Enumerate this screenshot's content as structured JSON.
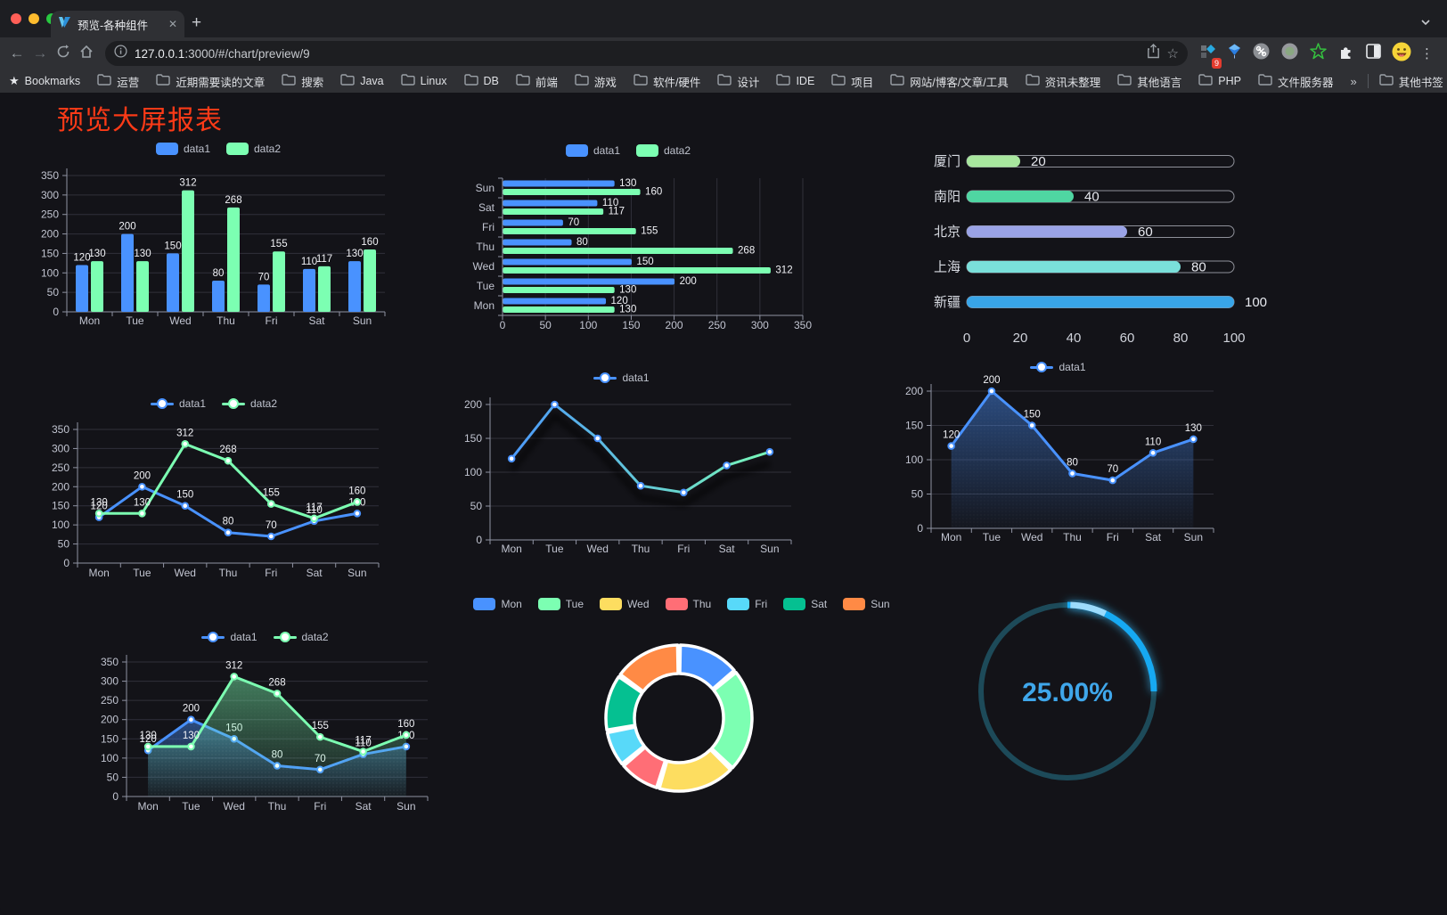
{
  "browser": {
    "tab": {
      "title": "预览-各种组件",
      "close_glyph": "✕",
      "new_tab_glyph": "+"
    },
    "toolbar": {
      "back_glyph": "←",
      "forward_glyph": "→",
      "url_host": "127.0.0.1",
      "url_rest": ":3000/#/chart/preview/9",
      "bookmark_star_glyph": "☆",
      "extension_badge": "9",
      "menu_glyph": "⋮"
    },
    "bookmarks": {
      "star_glyph": "★",
      "bookmarks_label": "Bookmarks",
      "folders": [
        "运营",
        "近期需要读的文章",
        "搜索",
        "Java",
        "Linux",
        "DB",
        "前端",
        "游戏",
        "软件/硬件",
        "设计",
        "IDE",
        "项目",
        "网站/博客/文章/工具",
        "资讯未整理",
        "其他语言",
        "PHP",
        "文件服务器"
      ],
      "overflow_glyph": "»",
      "other_bookmarks_label": "其他书签"
    }
  },
  "icons": {
    "reload-icon": "circular-arrow",
    "home-icon": "house",
    "info-icon": "circle-i",
    "share-icon": "box-up-arrow",
    "folder-icon": "folder",
    "chevron-down-icon": "v-chevron",
    "kite-icon": "blue-diamond",
    "command-icon": "grey-circle-propeller",
    "record-icon": "grey-green-circle",
    "green-star-icon": "green-star-outline",
    "puzzle-icon": "white-puzzle",
    "reading-mode-icon": "half-filled-square",
    "avatar-icon": "yellow-emoji-face"
  },
  "page": {
    "title": "预览大屏报表",
    "title_color": "#fb3a17",
    "bg": "#131318"
  },
  "chart_data": [
    {
      "id": "grouped-bar",
      "type": "bar",
      "render": "vbar",
      "title": "",
      "grid": true,
      "legend": {
        "marker": "rect",
        "position": "top",
        "items": [
          "data1",
          "data2"
        ]
      },
      "categories": [
        "Mon",
        "Tue",
        "Wed",
        "Thu",
        "Fri",
        "Sat",
        "Sun"
      ],
      "series": [
        {
          "name": "data1",
          "color": "#4992ff",
          "values": [
            120,
            200,
            150,
            80,
            70,
            110,
            130
          ]
        },
        {
          "name": "data2",
          "color": "#7cffb2",
          "values": [
            130,
            130,
            312,
            268,
            155,
            117,
            160
          ]
        }
      ],
      "y_ticks": [
        0,
        50,
        100,
        150,
        200,
        250,
        300,
        350
      ],
      "ylim": [
        0,
        350
      ],
      "labels": true
    },
    {
      "id": "grouped-hbar",
      "type": "bar",
      "render": "hbar",
      "legend": {
        "marker": "rect",
        "position": "top",
        "items": [
          "data1",
          "data2"
        ]
      },
      "categories_top_to_bottom": [
        "Sun",
        "Sat",
        "Fri",
        "Thu",
        "Wed",
        "Tue",
        "Mon"
      ],
      "series": [
        {
          "name": "data1",
          "color": "#4992ff",
          "values": [
            130,
            110,
            70,
            80,
            150,
            200,
            120
          ]
        },
        {
          "name": "data2",
          "color": "#7cffb2",
          "values": [
            160,
            117,
            155,
            268,
            312,
            130,
            130
          ]
        }
      ],
      "x_ticks": [
        0,
        50,
        100,
        150,
        200,
        250,
        300,
        350
      ],
      "xlim": [
        0,
        350
      ],
      "labels": true
    },
    {
      "id": "city-progress",
      "type": "bar",
      "render": "progress",
      "items": [
        {
          "label": "厦门",
          "value": 20,
          "color": "#a8e79e"
        },
        {
          "label": "南阳",
          "value": 40,
          "color": "#4fd6a2"
        },
        {
          "label": "北京",
          "value": 60,
          "color": "#9aa3e6"
        },
        {
          "label": "上海",
          "value": 80,
          "color": "#7adfda"
        },
        {
          "label": "新疆",
          "value": 100,
          "color": "#38a5e8"
        }
      ],
      "x_ticks": [
        0,
        20,
        40,
        60,
        80,
        100
      ],
      "xlim": [
        0,
        100
      ]
    },
    {
      "id": "line-two-series",
      "type": "line",
      "render": "line",
      "legend": {
        "marker": "line",
        "position": "top",
        "items": [
          "data1",
          "data2"
        ]
      },
      "categories": [
        "Mon",
        "Tue",
        "Wed",
        "Thu",
        "Fri",
        "Sat",
        "Sun"
      ],
      "series": [
        {
          "name": "data1",
          "color": "#4992ff",
          "values": [
            120,
            200,
            150,
            80,
            70,
            110,
            130
          ],
          "labels": true
        },
        {
          "name": "data2",
          "color": "#7cffb2",
          "values": [
            130,
            130,
            312,
            268,
            155,
            117,
            160
          ],
          "labels": true
        }
      ],
      "y_ticks": [
        0,
        50,
        100,
        150,
        200,
        250,
        300,
        350
      ],
      "ylim": [
        0,
        350
      ]
    },
    {
      "id": "line-gradient",
      "type": "line",
      "render": "line",
      "legend": {
        "marker": "line",
        "position": "top",
        "items": [
          "data1"
        ]
      },
      "categories": [
        "Mon",
        "Tue",
        "Wed",
        "Thu",
        "Fri",
        "Sat",
        "Sun"
      ],
      "series": [
        {
          "name": "data1",
          "color": "#4992ff",
          "gradient": [
            "#4992ff",
            "#7cffb2"
          ],
          "shadow": true,
          "values": [
            120,
            200,
            150,
            80,
            70,
            110,
            130
          ],
          "labels": false
        }
      ],
      "y_ticks": [
        0,
        50,
        100,
        150,
        200
      ],
      "ylim": [
        0,
        200
      ]
    },
    {
      "id": "line-area",
      "type": "area",
      "render": "line",
      "legend": {
        "marker": "line",
        "position": "top",
        "items": [
          "data1"
        ]
      },
      "categories": [
        "Mon",
        "Tue",
        "Wed",
        "Thu",
        "Fri",
        "Sat",
        "Sun"
      ],
      "series": [
        {
          "name": "data1",
          "color": "#4992ff",
          "area": true,
          "values": [
            120,
            200,
            150,
            80,
            70,
            110,
            130
          ],
          "labels": true
        }
      ],
      "y_ticks": [
        0,
        50,
        100,
        150,
        200
      ],
      "ylim": [
        0,
        200
      ]
    },
    {
      "id": "line-area-two",
      "type": "area",
      "render": "line",
      "legend": {
        "marker": "line",
        "position": "top",
        "items": [
          "data1",
          "data2"
        ]
      },
      "categories": [
        "Mon",
        "Tue",
        "Wed",
        "Thu",
        "Fri",
        "Sat",
        "Sun"
      ],
      "series": [
        {
          "name": "data1",
          "color": "#4992ff",
          "area": true,
          "values": [
            120,
            200,
            150,
            80,
            70,
            110,
            130
          ],
          "labels": true
        },
        {
          "name": "data2",
          "color": "#7cffb2",
          "area": true,
          "values": [
            130,
            130,
            312,
            268,
            155,
            117,
            160
          ],
          "labels": true
        }
      ],
      "y_ticks": [
        0,
        50,
        100,
        150,
        200,
        250,
        300,
        350
      ],
      "ylim": [
        0,
        350
      ]
    },
    {
      "id": "donut",
      "type": "pie",
      "render": "donut",
      "legend": {
        "marker": "rect",
        "position": "top",
        "items": [
          "Mon",
          "Tue",
          "Wed",
          "Thu",
          "Fri",
          "Sat",
          "Sun"
        ]
      },
      "slices": [
        {
          "label": "Mon",
          "value": 120,
          "color": "#4992ff"
        },
        {
          "label": "Tue",
          "value": 200,
          "color": "#7cffb2"
        },
        {
          "label": "Wed",
          "value": 150,
          "color": "#fddd60"
        },
        {
          "label": "Thu",
          "value": 80,
          "color": "#ff6e76"
        },
        {
          "label": "Fri",
          "value": 70,
          "color": "#58d9f9"
        },
        {
          "label": "Sat",
          "value": 110,
          "color": "#05c091"
        },
        {
          "label": "Sun",
          "value": 130,
          "color": "#ff8a45"
        }
      ]
    },
    {
      "id": "ring-progress",
      "type": "pie",
      "render": "ring",
      "value_label": "25.00%",
      "percent": 25,
      "color": "#18a9f2",
      "track_color": "#1d4a59",
      "text_color": "#3fa7eb"
    }
  ]
}
